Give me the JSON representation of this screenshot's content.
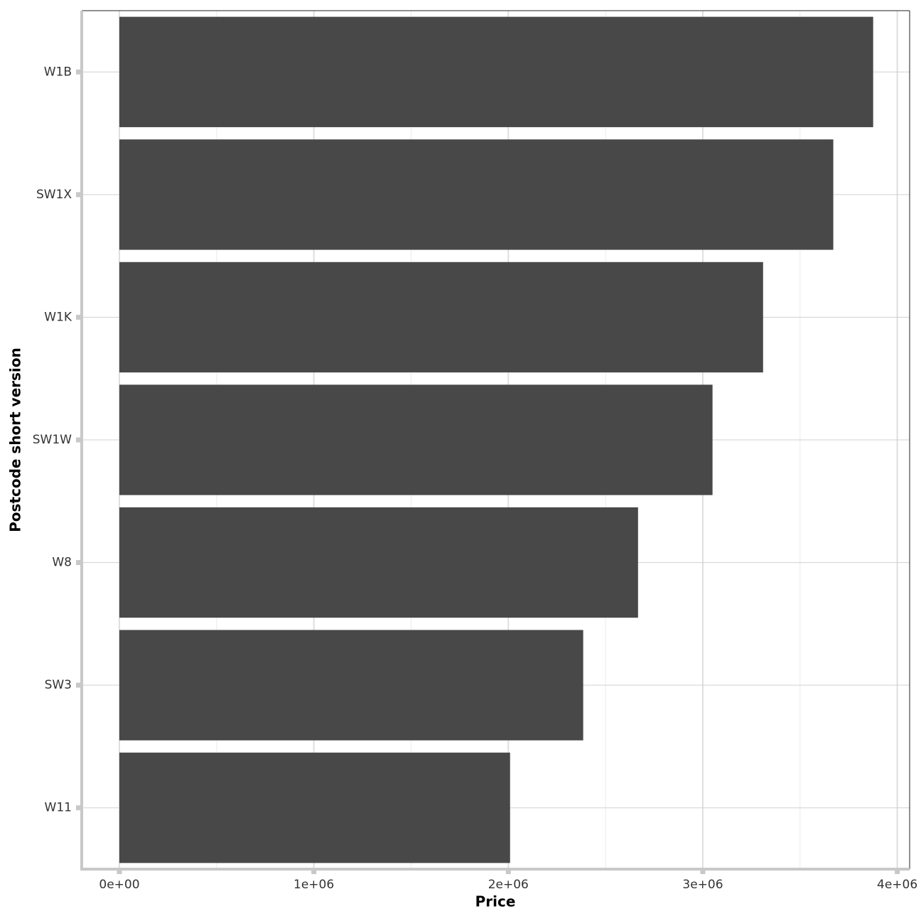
{
  "chart_data": {
    "type": "bar",
    "orientation": "horizontal",
    "x_label": "Price",
    "y_label": "Postcode short version",
    "categories": [
      "W1B",
      "SW1X",
      "W1K",
      "SW1W",
      "W8",
      "SW3",
      "W11"
    ],
    "values": [
      3876000,
      3671000,
      3310000,
      3050000,
      2667000,
      2385000,
      2009000
    ],
    "color": "#484848",
    "xlim": [
      -193500,
      4063500
    ],
    "xticks": [
      {
        "value": 0,
        "label": "0e+00"
      },
      {
        "value": 1000000,
        "label": "1e+06"
      },
      {
        "value": 2000000,
        "label": "2e+06"
      },
      {
        "value": 3000000,
        "label": "3e+06"
      },
      {
        "value": 4000000,
        "label": "4e+06"
      }
    ],
    "grid": true
  }
}
